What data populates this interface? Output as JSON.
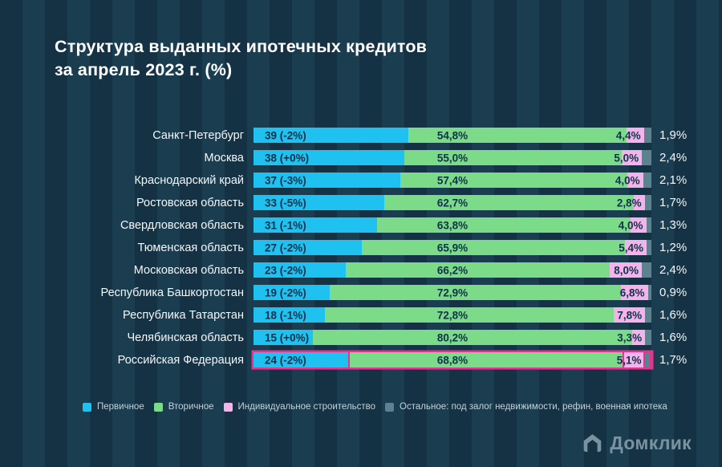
{
  "title": {
    "line1": "Структура выданных ипотечных кредитов",
    "line2": "за апрель 2023 г. (%)"
  },
  "colors": {
    "background": "#16374A",
    "primary": "#1FC1F0",
    "secondary": "#7CDB88",
    "individual": "#F4B3EA",
    "other": "#5C828F",
    "highlight_border": "#E5338F",
    "inner_label": "#10324A",
    "text": "#F2F7FA"
  },
  "legend": [
    {
      "label": "Первичное",
      "color_key": "primary"
    },
    {
      "label": "Вторичное",
      "color_key": "secondary"
    },
    {
      "label": "Индивидуальное строительство",
      "color_key": "individual"
    },
    {
      "label": "Остальное: под залог недвижимости, рефин, военная ипотека",
      "color_key": "other"
    }
  ],
  "logo": {
    "text": "Домклик"
  },
  "chart_data": {
    "type": "bar",
    "stacked": true,
    "orientation": "horizontal",
    "title": "Структура выданных ипотечных кредитов за апрель 2023 г. (%)",
    "xlabel": "",
    "ylabel": "",
    "xlim": [
      0,
      100
    ],
    "grid": false,
    "legend_position": "bottom",
    "series_names": [
      "Первичное",
      "Вторичное",
      "Индивидуальное строительство",
      "Остальное: под залог недвижимости, рефин, военная ипотека"
    ],
    "categories": [
      "Санкт-Петербург",
      "Москва",
      "Краснодарский край",
      "Ростовская область",
      "Свердловская область",
      "Тюменская область",
      "Московская область",
      "Республика Башкортостан",
      "Республика Татарстан",
      "Челябинская область",
      "Российская Федерация"
    ],
    "rows": [
      {
        "category": "Санкт-Петербург",
        "primary_value": 39,
        "primary_label": "39 (-2%)",
        "secondary_value": 54.8,
        "secondary_label": "54,8%",
        "individual_value": 4.4,
        "individual_label": "4,4%",
        "other_value": 1.9,
        "other_label": "1,9%",
        "highlighted": false
      },
      {
        "category": "Москва",
        "primary_value": 38,
        "primary_label": "38 (+0%)",
        "secondary_value": 55.0,
        "secondary_label": "55,0%",
        "individual_value": 5.0,
        "individual_label": "5,0%",
        "other_value": 2.4,
        "other_label": "2,4%",
        "highlighted": false
      },
      {
        "category": "Краснодарский край",
        "primary_value": 37,
        "primary_label": "37 (-3%)",
        "secondary_value": 57.4,
        "secondary_label": "57,4%",
        "individual_value": 4.0,
        "individual_label": "4,0%",
        "other_value": 2.1,
        "other_label": "2,1%",
        "highlighted": false
      },
      {
        "category": "Ростовская область",
        "primary_value": 33,
        "primary_label": "33 (-5%)",
        "secondary_value": 62.7,
        "secondary_label": "62,7%",
        "individual_value": 2.8,
        "individual_label": "2,8%",
        "other_value": 1.7,
        "other_label": "1,7%",
        "highlighted": false
      },
      {
        "category": "Свердловская область",
        "primary_value": 31,
        "primary_label": "31 (-1%)",
        "secondary_value": 63.8,
        "secondary_label": "63,8%",
        "individual_value": 4.0,
        "individual_label": "4,0%",
        "other_value": 1.3,
        "other_label": "1,3%",
        "highlighted": false
      },
      {
        "category": "Тюменская область",
        "primary_value": 27,
        "primary_label": "27 (-2%)",
        "secondary_value": 65.9,
        "secondary_label": "65,9%",
        "individual_value": 5.4,
        "individual_label": "5,4%",
        "other_value": 1.2,
        "other_label": "1,2%",
        "highlighted": false
      },
      {
        "category": "Московская область",
        "primary_value": 23,
        "primary_label": "23 (-2%)",
        "secondary_value": 66.2,
        "secondary_label": "66,2%",
        "individual_value": 8.0,
        "individual_label": "8,0%",
        "other_value": 2.4,
        "other_label": "2,4%",
        "highlighted": false
      },
      {
        "category": "Республика Башкортостан",
        "primary_value": 19,
        "primary_label": "19 (-2%)",
        "secondary_value": 72.9,
        "secondary_label": "72,9%",
        "individual_value": 6.8,
        "individual_label": "6,8%",
        "other_value": 0.9,
        "other_label": "0,9%",
        "highlighted": false
      },
      {
        "category": "Республика Татарстан",
        "primary_value": 18,
        "primary_label": "18 (-1%)",
        "secondary_value": 72.8,
        "secondary_label": "72,8%",
        "individual_value": 7.8,
        "individual_label": "7,8%",
        "other_value": 1.6,
        "other_label": "1,6%",
        "highlighted": false
      },
      {
        "category": "Челябинская область",
        "primary_value": 15,
        "primary_label": "15 (+0%)",
        "secondary_value": 80.2,
        "secondary_label": "80,2%",
        "individual_value": 3.3,
        "individual_label": "3,3%",
        "other_value": 1.6,
        "other_label": "1,6%",
        "highlighted": false
      },
      {
        "category": "Российская Федерация",
        "primary_value": 24,
        "primary_label": "24 (-2%)",
        "secondary_value": 68.8,
        "secondary_label": "68,8%",
        "individual_value": 5.1,
        "individual_label": "5,1%",
        "other_value": 1.7,
        "other_label": "1,7%",
        "highlighted": true
      }
    ]
  }
}
